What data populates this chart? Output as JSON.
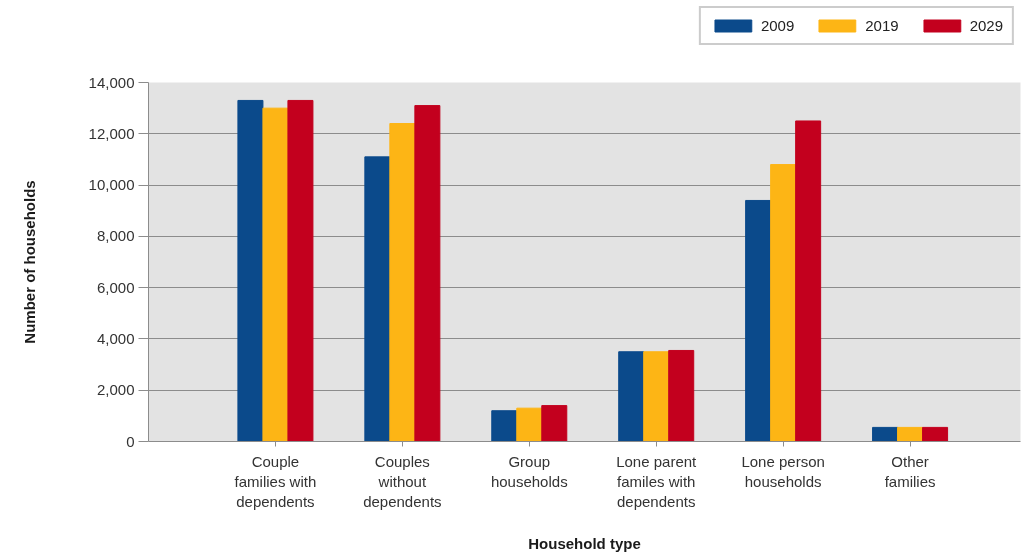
{
  "chart_data": {
    "type": "bar",
    "xlabel": "Household type",
    "ylabel": "Number of households",
    "categories": [
      "Couple families with dependents",
      "Couples without dependents",
      "Group households",
      "Lone parent familes with dependents",
      "Lone person households",
      "Other families"
    ],
    "series": [
      {
        "name": "2009",
        "color": "#0b4a8b",
        "values": [
          13300,
          11100,
          1200,
          3500,
          9400,
          550
        ]
      },
      {
        "name": "2019",
        "color": "#fdb515",
        "values": [
          13000,
          12400,
          1300,
          3500,
          10800,
          550
        ]
      },
      {
        "name": "2029",
        "color": "#c3001e",
        "values": [
          13300,
          13100,
          1400,
          3550,
          12500,
          550
        ]
      }
    ],
    "ylim": [
      0,
      14000
    ],
    "yticks": [
      0,
      {
        "value": 2000,
        "label": "2,000"
      },
      {
        "value": 4000,
        "label": "4,000"
      },
      {
        "value": 6000,
        "label": "6,000"
      },
      {
        "value": 8000,
        "label": "8,000"
      },
      {
        "value": 10000,
        "label": "10,000"
      },
      {
        "value": 12000,
        "label": "12,000"
      },
      {
        "value": 14000,
        "label": "14,000"
      }
    ],
    "grid": "y",
    "legend": "top right"
  }
}
